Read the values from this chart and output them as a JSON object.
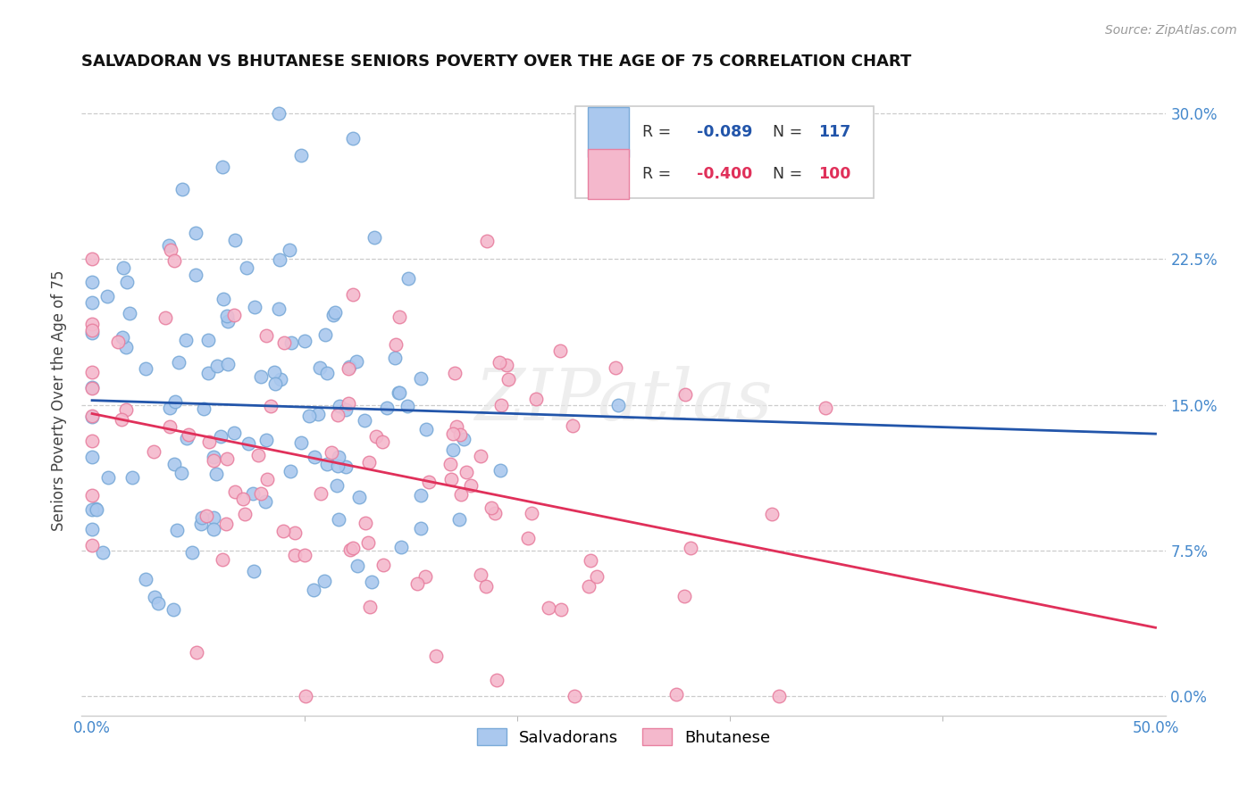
{
  "title": "SALVADORAN VS BHUTANESE SENIORS POVERTY OVER THE AGE OF 75 CORRELATION CHART",
  "source": "Source: ZipAtlas.com",
  "ylabel": "Seniors Poverty Over the Age of 75",
  "xlabel_ticks": [
    "0.0%",
    "50.0%"
  ],
  "xlabel_vals": [
    0.0,
    0.5
  ],
  "ylabel_ticks": [
    "0.0%",
    "7.5%",
    "15.0%",
    "22.5%",
    "30.0%"
  ],
  "ylabel_vals": [
    0.0,
    0.075,
    0.15,
    0.225,
    0.3
  ],
  "xlim": [
    -0.005,
    0.505
  ],
  "ylim": [
    -0.01,
    0.315
  ],
  "salvadoran_color": "#aac8ee",
  "bhutanese_color": "#f4b8cc",
  "salvadoran_edge": "#7aaad8",
  "bhutanese_edge": "#e880a0",
  "line_salvadoran": "#2255aa",
  "line_bhutanese": "#e0305a",
  "watermark": "ZIPatlas",
  "R_salvadoran": -0.089,
  "N_salvadoran": 117,
  "R_bhutanese": -0.4,
  "N_bhutanese": 100,
  "seed": 42
}
